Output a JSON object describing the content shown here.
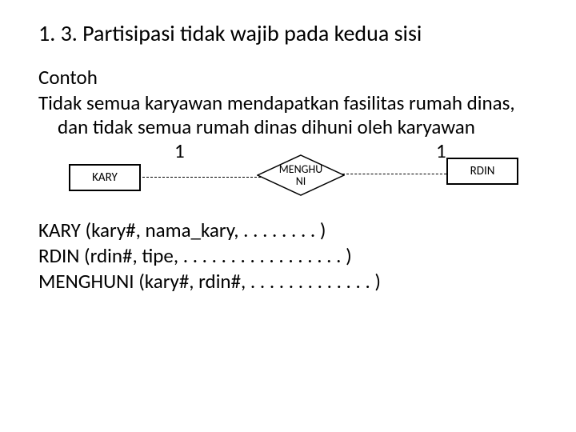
{
  "title": "1. 3. Partisipasi tidak wajib pada kedua sisi",
  "subheading": "Contoh",
  "body": "Tidak semua karyawan mendapatkan fasilitas rumah dinas, dan tidak semua rumah dinas dihuni oleh karyawan",
  "diagram": {
    "type": "er-diagram",
    "entity_left": "KARY",
    "entity_right": "RDIN",
    "relationship": "MENGHU\nNI",
    "cardinality_left": "1",
    "cardinality_right": "1",
    "colors": {
      "background": "#ffffff",
      "stroke": "#000000",
      "text": "#000000"
    },
    "line_style": "dashed"
  },
  "schema": {
    "line1": "KARY (kary#, nama_kary, . . . . . . . . )",
    "line2": "RDIN (rdin#, tipe, . . . . . . . . . . . . . . . . . )",
    "line3": "MENGHUNI (kary#, rdin#, . . . . . . . . . . . . . )"
  },
  "typography": {
    "title_fontsize": 28,
    "body_fontsize": 25,
    "entity_fontsize": 15,
    "diamond_fontsize": 14
  }
}
